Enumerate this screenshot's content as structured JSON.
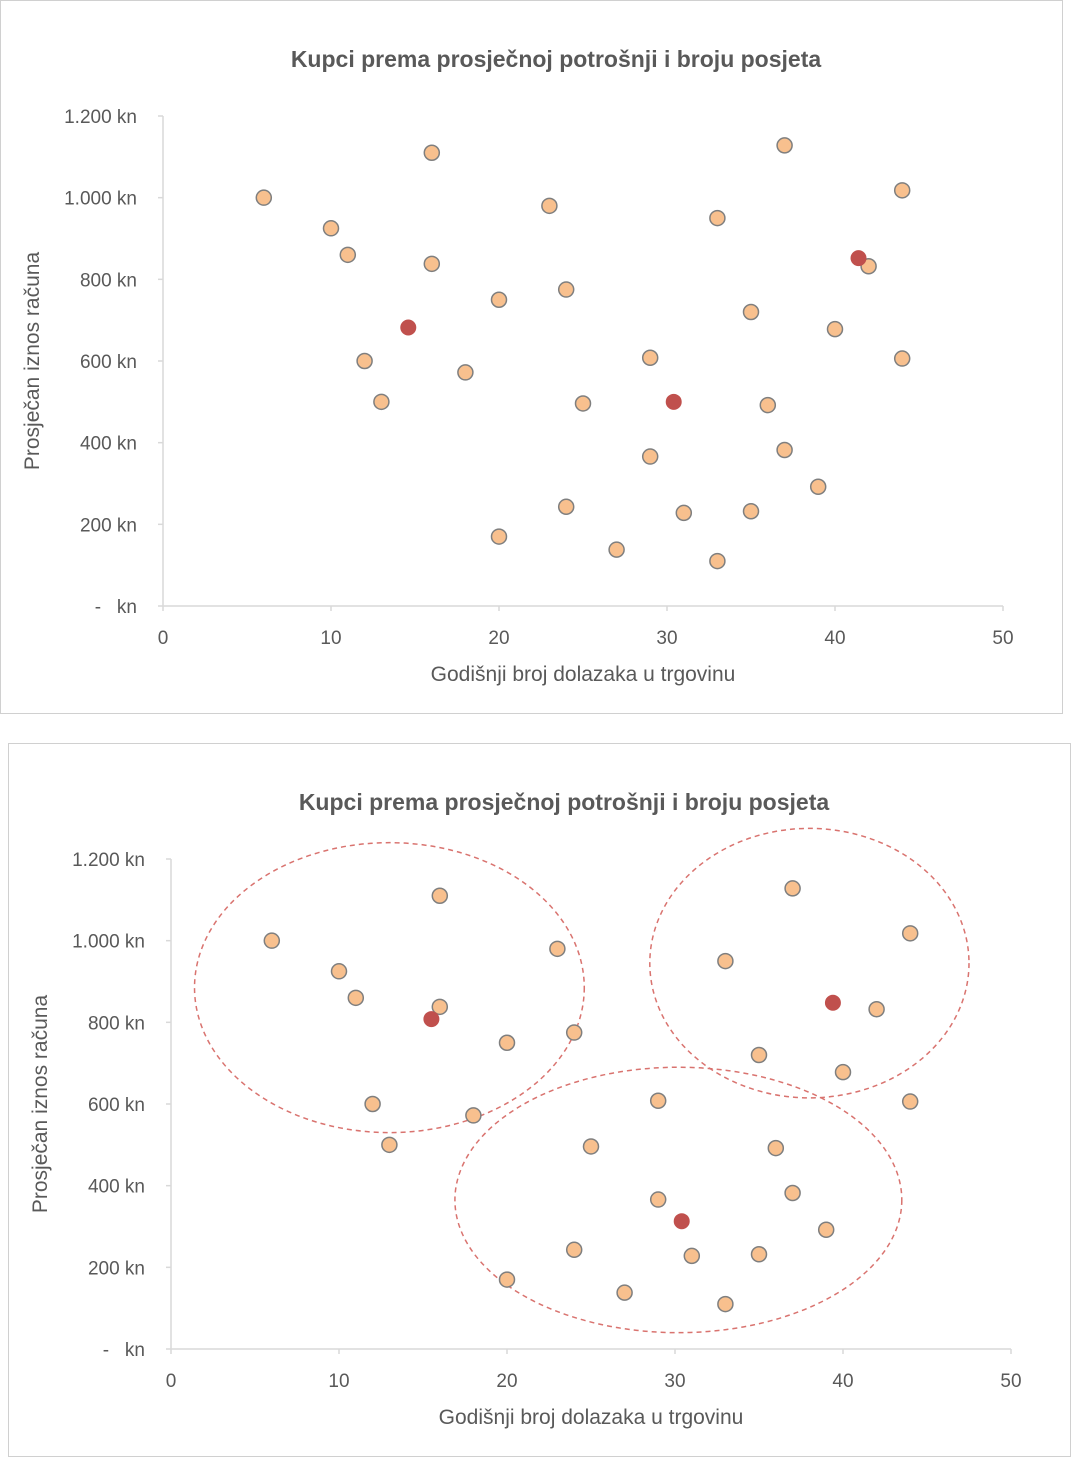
{
  "chart_data": [
    {
      "type": "scatter",
      "title": "Kupci prema prosječnoj potrošnji i broju posjeta",
      "xlabel": "Godišnji broj dolazaka u trgovinu",
      "ylabel": "Prosječan iznos računa",
      "xlim": [
        0,
        50
      ],
      "ylim": [
        0,
        1200
      ],
      "x_ticks": [
        "0",
        "10",
        "20",
        "30",
        "40",
        "50"
      ],
      "y_ticks": [
        "-   kn",
        "200 kn",
        "400 kn",
        "600 kn",
        "800 kn",
        "1.000 kn",
        "1.200 kn"
      ],
      "grid": false,
      "legend": "none",
      "series": [
        {
          "color": "#F8C08E",
          "points": [
            {
              "x": 6,
              "y": 1000
            },
            {
              "x": 10,
              "y": 925
            },
            {
              "x": 11,
              "y": 860
            },
            {
              "x": 12,
              "y": 600
            },
            {
              "x": 13,
              "y": 500
            },
            {
              "x": 16,
              "y": 1110
            },
            {
              "x": 16,
              "y": 838
            },
            {
              "x": 18,
              "y": 572
            },
            {
              "x": 20,
              "y": 750
            },
            {
              "x": 20,
              "y": 170
            },
            {
              "x": 23,
              "y": 980
            },
            {
              "x": 24,
              "y": 775
            },
            {
              "x": 24,
              "y": 243
            },
            {
              "x": 25,
              "y": 496
            },
            {
              "x": 27,
              "y": 138
            },
            {
              "x": 29,
              "y": 608
            },
            {
              "x": 29,
              "y": 366
            },
            {
              "x": 31,
              "y": 228
            },
            {
              "x": 33,
              "y": 950
            },
            {
              "x": 33,
              "y": 110
            },
            {
              "x": 35,
              "y": 720
            },
            {
              "x": 35,
              "y": 232
            },
            {
              "x": 36,
              "y": 492
            },
            {
              "x": 37,
              "y": 1128
            },
            {
              "x": 37,
              "y": 382
            },
            {
              "x": 39,
              "y": 292
            },
            {
              "x": 40,
              "y": 678
            },
            {
              "x": 42,
              "y": 832
            },
            {
              "x": 44,
              "y": 1018
            },
            {
              "x": 44,
              "y": 606
            }
          ]
        },
        {
          "color": "#C0504D",
          "points": [
            {
              "x": 14.6,
              "y": 682
            },
            {
              "x": 30.4,
              "y": 500
            },
            {
              "x": 41.4,
              "y": 852
            }
          ]
        }
      ]
    },
    {
      "type": "scatter",
      "title": "Kupci prema prosječnoj potrošnji i broju posjeta",
      "xlabel": "Godišnji broj dolazaka u trgovinu",
      "ylabel": "Prosječan iznos računa",
      "xlim": [
        0,
        50
      ],
      "ylim": [
        0,
        1200
      ],
      "x_ticks": [
        "0",
        "10",
        "20",
        "30",
        "40",
        "50"
      ],
      "y_ticks": [
        "-   kn",
        "200 kn",
        "400 kn",
        "600 kn",
        "800 kn",
        "1.000 kn",
        "1.200 kn"
      ],
      "grid": false,
      "legend": "none",
      "series": [
        {
          "color": "#F8C08E",
          "points": [
            {
              "x": 6,
              "y": 1000
            },
            {
              "x": 10,
              "y": 925
            },
            {
              "x": 11,
              "y": 860
            },
            {
              "x": 12,
              "y": 600
            },
            {
              "x": 13,
              "y": 500
            },
            {
              "x": 16,
              "y": 1110
            },
            {
              "x": 16,
              "y": 838
            },
            {
              "x": 18,
              "y": 572
            },
            {
              "x": 20,
              "y": 750
            },
            {
              "x": 20,
              "y": 170
            },
            {
              "x": 23,
              "y": 980
            },
            {
              "x": 24,
              "y": 775
            },
            {
              "x": 24,
              "y": 243
            },
            {
              "x": 25,
              "y": 496
            },
            {
              "x": 27,
              "y": 138
            },
            {
              "x": 29,
              "y": 608
            },
            {
              "x": 29,
              "y": 366
            },
            {
              "x": 31,
              "y": 228
            },
            {
              "x": 33,
              "y": 950
            },
            {
              "x": 33,
              "y": 110
            },
            {
              "x": 35,
              "y": 720
            },
            {
              "x": 35,
              "y": 232
            },
            {
              "x": 36,
              "y": 492
            },
            {
              "x": 37,
              "y": 1128
            },
            {
              "x": 37,
              "y": 382
            },
            {
              "x": 39,
              "y": 292
            },
            {
              "x": 40,
              "y": 678
            },
            {
              "x": 42,
              "y": 832
            },
            {
              "x": 44,
              "y": 1018
            },
            {
              "x": 44,
              "y": 606
            }
          ]
        },
        {
          "color": "#C0504D",
          "points": [
            {
              "x": 15.5,
              "y": 808
            },
            {
              "x": 30.4,
              "y": 313
            },
            {
              "x": 39.4,
              "y": 848
            }
          ]
        }
      ],
      "cluster_outlines": [
        {
          "cx": 13.0,
          "cy": 885,
          "rx": 11.6,
          "ry": 355,
          "color": "#D9736F"
        },
        {
          "cx": 38.0,
          "cy": 945,
          "rx": 9.5,
          "ry": 330,
          "color": "#D9736F"
        },
        {
          "cx": 30.2,
          "cy": 365,
          "rx": 13.3,
          "ry": 325,
          "color": "#D9736F"
        }
      ]
    }
  ]
}
